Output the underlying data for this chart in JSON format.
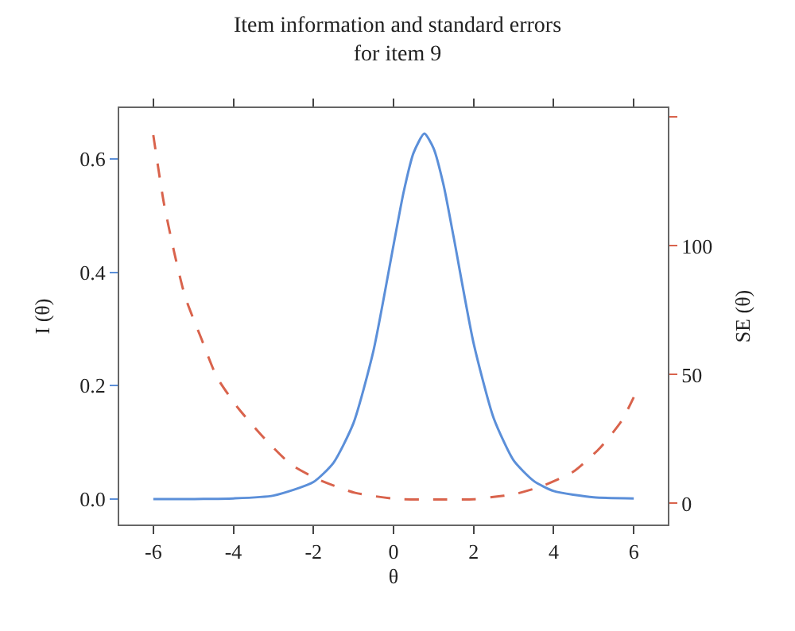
{
  "chart_data": {
    "type": "line",
    "title": "Item information and standard errors\nfor item 9",
    "xlabel": "θ",
    "ylabel": "I (θ)",
    "y2label": "SE (θ)",
    "xlim": [
      -6.85,
      6.85
    ],
    "xticks": [
      -6,
      -4,
      -2,
      0,
      2,
      4,
      6
    ],
    "ylim": [
      -0.045,
      0.69
    ],
    "yticks": [
      {
        "value": 0,
        "label": "0.0"
      },
      {
        "value": 0.2,
        "label": "0.2"
      },
      {
        "value": 0.4,
        "label": "0.4"
      },
      {
        "value": 0.6,
        "label": "0.6"
      }
    ],
    "y2lim": [
      -8.2,
      153.5
    ],
    "y2ticks": [
      0,
      50,
      100,
      {
        "value": 150,
        "label": null
      }
    ],
    "series": [
      {
        "color": "#5b8fd9",
        "line_style": "solid",
        "x": [
          -6,
          -5,
          -4,
          -3,
          -2,
          -1.5,
          -1,
          -0.5,
          0,
          0.25,
          0.5,
          0.77,
          1,
          1.25,
          1.5,
          2,
          2.5,
          3,
          3.5,
          4,
          5,
          6
        ],
        "values": [
          0.0,
          0.0,
          0.001,
          0.006,
          0.03,
          0.064,
          0.134,
          0.262,
          0.448,
          0.541,
          0.611,
          0.645,
          0.619,
          0.554,
          0.463,
          0.275,
          0.143,
          0.068,
          0.032,
          0.014,
          0.003,
          0.001
        ]
      },
      {
        "color": "#d9634c",
        "line_style": "dashed",
        "axis": "y2",
        "x": [
          -6,
          -5.74,
          -5.47,
          -5.2,
          -4.8,
          -4.41,
          -3.88,
          -3.21,
          -2.55,
          -1.88,
          -0.96,
          0.1,
          1,
          2,
          2.5,
          3,
          3.69,
          4.49,
          5.16,
          5.69,
          6
        ],
        "values": [
          143,
          117,
          97,
          80,
          64,
          49,
          37,
          25,
          15,
          9.3,
          4.1,
          1.7,
          1.5,
          1.6,
          2.5,
          3.5,
          6.6,
          12.3,
          21.6,
          31.9,
          41.2
        ]
      }
    ]
  }
}
